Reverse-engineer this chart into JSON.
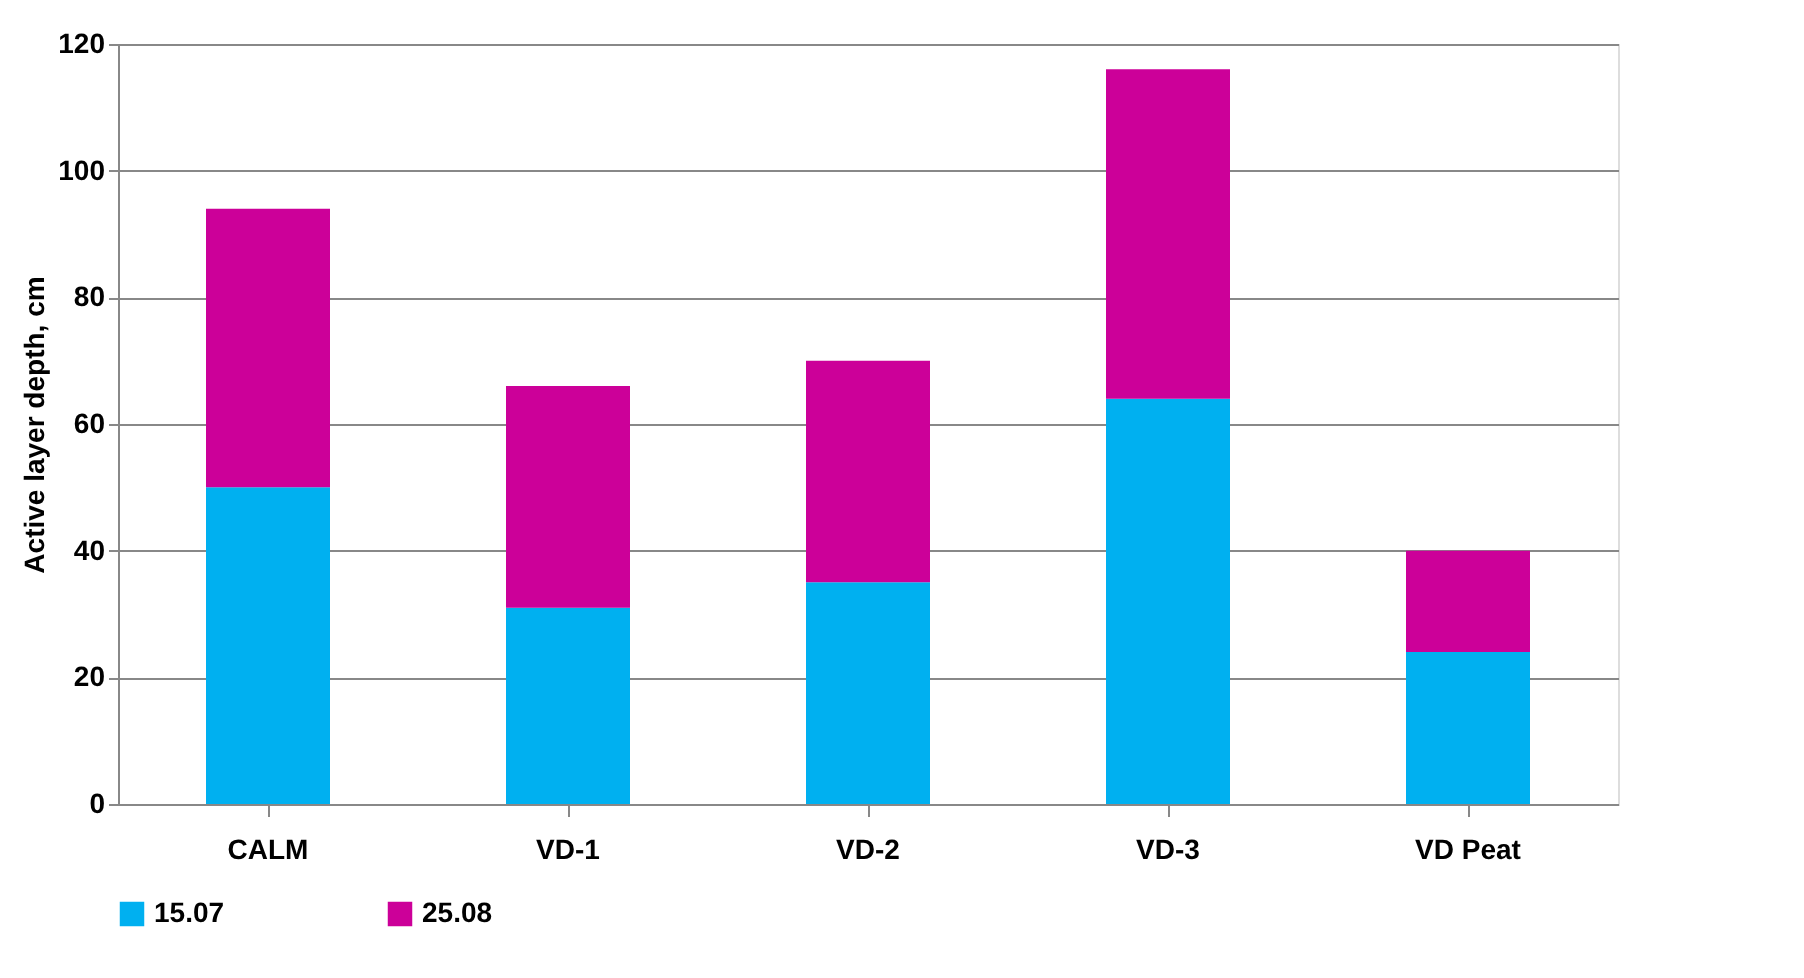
{
  "chart_data": {
    "type": "bar",
    "stacked": true,
    "ylabel": "Active layer depth, cm",
    "categories": [
      "CALM",
      "VD-1",
      "VD-2",
      "VD-3",
      "VD Peat"
    ],
    "series": [
      {
        "name": "15.07",
        "color": "#00b0f0",
        "values": [
          50,
          31,
          35,
          64,
          24
        ]
      },
      {
        "name": "25.08",
        "color": "#cc0099",
        "values": [
          44,
          35,
          35,
          52,
          16
        ]
      }
    ],
    "ylim": [
      0,
      120
    ],
    "yticks": [
      0,
      20,
      40,
      60,
      80,
      100,
      120
    ],
    "grid": "y",
    "legend": "bottom"
  }
}
